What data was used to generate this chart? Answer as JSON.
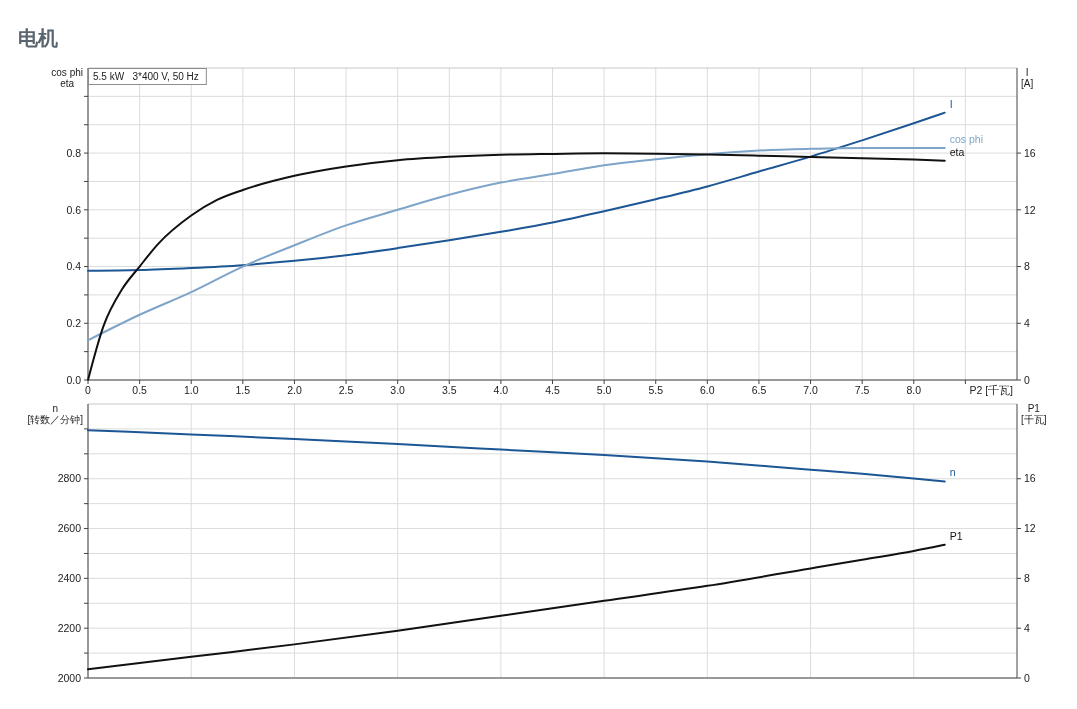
{
  "chart_data": [
    {
      "type": "line",
      "title": "电机",
      "xlabel": "P2 [千瓦]",
      "ylabel": "cos phi\neta",
      "y2label": "I\n[A]",
      "annotations": [
        "5.5 kW   3*400 V, 50 Hz"
      ],
      "xlim": [
        0,
        9
      ],
      "xticks": [
        0,
        0.5,
        {
          "value": 1,
          "label": "1.0"
        },
        1.5,
        {
          "value": 2,
          "label": "2.0"
        },
        2.5,
        {
          "value": 3,
          "label": "3.0"
        },
        3.5,
        {
          "value": 4,
          "label": "4.0"
        },
        4.5,
        {
          "value": 5,
          "label": "5.0"
        },
        5.5,
        {
          "value": 6,
          "label": "6.0"
        },
        6.5,
        {
          "value": 7,
          "label": "7.0"
        },
        7.5,
        {
          "value": 8,
          "label": "8.0"
        },
        {
          "value": 8.5,
          "label": null
        }
      ],
      "ylim": [
        0,
        1.1
      ],
      "yticks": [
        {
          "value": 0,
          "label": "0.0"
        },
        {
          "value": 0.1,
          "label": null
        },
        0.2,
        {
          "value": 0.3,
          "label": null
        },
        0.4,
        {
          "value": 0.5,
          "label": null
        },
        0.6,
        {
          "value": 0.7,
          "label": null
        },
        0.8,
        {
          "value": 0.9,
          "label": null
        },
        {
          "value": 1,
          "label": null
        }
      ],
      "y2lim": [
        0,
        22
      ],
      "y2ticks": [
        0,
        4,
        8,
        12,
        16
      ],
      "grid": true,
      "series": [
        {
          "name": "I",
          "color": "#1d5694",
          "axis": "y2",
          "x": [
            0,
            0.5,
            1,
            1.5,
            2,
            2.5,
            3,
            3.5,
            4,
            4.5,
            5,
            5.5,
            6,
            6.5,
            7,
            7.5,
            8,
            8.3
          ],
          "values": [
            7.7,
            7.75,
            7.9,
            8.1,
            8.4,
            8.8,
            9.3,
            9.85,
            10.45,
            11.1,
            11.9,
            12.75,
            13.65,
            14.7,
            15.75,
            16.9,
            18.1,
            18.85
          ]
        },
        {
          "name": "cos phi",
          "color": "#7ea5c9",
          "x": [
            0,
            0.5,
            1,
            1.5,
            2,
            2.5,
            3,
            3.5,
            4,
            4.5,
            5,
            5.5,
            6,
            6.5,
            7,
            7.5,
            8,
            8.3
          ],
          "values": [
            0.14,
            0.23,
            0.31,
            0.4,
            0.475,
            0.545,
            0.6,
            0.653,
            0.696,
            0.726,
            0.757,
            0.778,
            0.796,
            0.809,
            0.815,
            0.818,
            0.818,
            0.818
          ]
        },
        {
          "name": "eta",
          "color": "#111111",
          "x": [
            0,
            0.15,
            0.33,
            0.5,
            0.68,
            1,
            1.25,
            1.5,
            2,
            2.5,
            3,
            3.5,
            4,
            4.5,
            5,
            5.5,
            6,
            6.5,
            7,
            7.5,
            8,
            8.3
          ],
          "values": [
            0,
            0.19,
            0.32,
            0.4,
            0.48,
            0.58,
            0.635,
            0.67,
            0.72,
            0.753,
            0.775,
            0.787,
            0.794,
            0.797,
            0.799,
            0.798,
            0.795,
            0.791,
            0.786,
            0.782,
            0.777,
            0.773
          ]
        }
      ]
    },
    {
      "type": "line",
      "ylabel": "n\n[转数／分钟]",
      "y2label": "P1\n[千瓦]",
      "tick_labels": "y",
      "xlim": [
        0,
        9
      ],
      "xticks": [
        0,
        1,
        2,
        3,
        4,
        5,
        6,
        7,
        8
      ],
      "ylim": [
        2000,
        3100
      ],
      "yticks": [
        2000,
        {
          "value": 2100,
          "label": null
        },
        2200,
        {
          "value": 2300,
          "label": null
        },
        2400,
        {
          "value": 2500,
          "label": null
        },
        2600,
        {
          "value": 2700,
          "label": null
        },
        2800,
        {
          "value": 2900,
          "label": null
        },
        {
          "value": 3000,
          "label": null
        }
      ],
      "y2lim": [
        0,
        22
      ],
      "y2ticks": [
        0,
        4,
        8,
        12,
        16
      ],
      "grid": true,
      "series": [
        {
          "name": "n",
          "color": "#1d5694",
          "x": [
            0,
            1,
            2,
            3,
            4,
            5,
            6,
            7,
            7.5,
            8,
            8.3
          ],
          "values": [
            2995,
            2978,
            2959,
            2939,
            2917,
            2895,
            2869,
            2836,
            2820,
            2801,
            2789
          ]
        },
        {
          "name": "P1",
          "color": "#111111",
          "axis": "y2",
          "x": [
            0,
            1,
            2,
            3,
            4,
            5,
            6,
            7,
            7.5,
            8,
            8.3
          ],
          "values": [
            0.7,
            1.7,
            2.7,
            3.8,
            5.0,
            6.2,
            7.4,
            8.8,
            9.5,
            10.2,
            10.7
          ]
        }
      ]
    }
  ]
}
